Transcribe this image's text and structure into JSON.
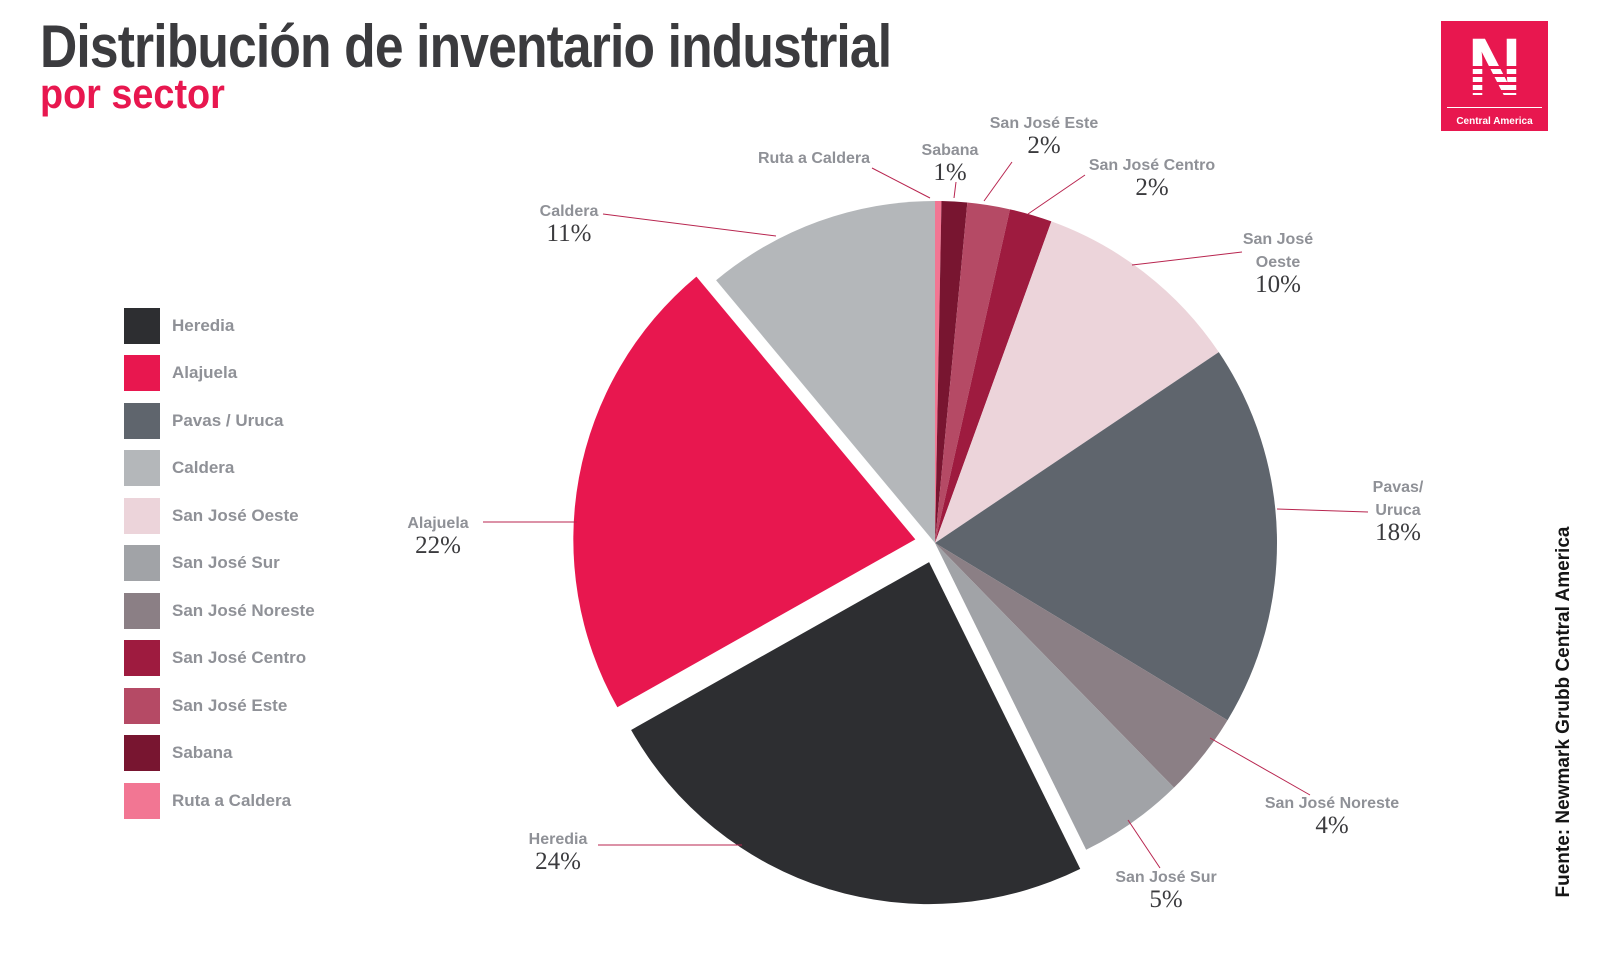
{
  "title": "Distribución de inventario industrial",
  "subtitle": "por sector",
  "logo": {
    "letter": "N",
    "caption": "Central America"
  },
  "source": "Fuente: Newmark Grubb Central America",
  "legend": [
    {
      "label": "Heredia",
      "color": "#2d2e31"
    },
    {
      "label": "Alajuela",
      "color": "#e8174f"
    },
    {
      "label": "Pavas / Uruca",
      "color": "#5f656d"
    },
    {
      "label": "Caldera",
      "color": "#b4b7ba"
    },
    {
      "label": "San José Oeste",
      "color": "#ecd4da"
    },
    {
      "label": "San José Sur",
      "color": "#a1a3a7"
    },
    {
      "label": "San José Noreste",
      "color": "#8b7f85"
    },
    {
      "label": "San José Centro",
      "color": "#9e1b3f"
    },
    {
      "label": "San José Este",
      "color": "#b54a65"
    },
    {
      "label": "Sabana",
      "color": "#781530"
    },
    {
      "label": "Ruta a Caldera",
      "color": "#f27693"
    }
  ],
  "chart_data": {
    "type": "pie",
    "title": "Distribución de inventario industrial",
    "subtitle": "por sector",
    "unit": "%",
    "slices": [
      {
        "label": "Ruta a Caldera",
        "value": 0.3,
        "pct_label": "",
        "color": "#f27693",
        "explode": false
      },
      {
        "label": "Sabana",
        "value": 1.2,
        "pct_label": "1%",
        "color": "#781530",
        "explode": false
      },
      {
        "label": "San José Este",
        "value": 2,
        "pct_label": "2%",
        "color": "#b54a65",
        "explode": false
      },
      {
        "label": "San José Centro",
        "value": 2,
        "pct_label": "2%",
        "color": "#9e1b3f",
        "explode": false
      },
      {
        "label": "San José Oeste",
        "value": 10,
        "pct_label": "10%",
        "color": "#ecd4da",
        "explode": false
      },
      {
        "label": "Pavas/ Uruca",
        "value": 18,
        "pct_label": "18%",
        "color": "#5f656d",
        "explode": false
      },
      {
        "label": "San José Noreste",
        "value": 4,
        "pct_label": "4%",
        "color": "#8b7f85",
        "explode": false
      },
      {
        "label": "San José Sur",
        "value": 5,
        "pct_label": "5%",
        "color": "#a1a3a7",
        "explode": false
      },
      {
        "label": "Heredia",
        "value": 24,
        "pct_label": "24%",
        "color": "#2d2e31",
        "explode": true
      },
      {
        "label": "Alajuela",
        "value": 22,
        "pct_label": "22%",
        "color": "#e8174f",
        "explode": true
      },
      {
        "label": "Caldera",
        "value": 11,
        "pct_label": "11%",
        "color": "#b4b7ba",
        "explode": false
      }
    ]
  }
}
